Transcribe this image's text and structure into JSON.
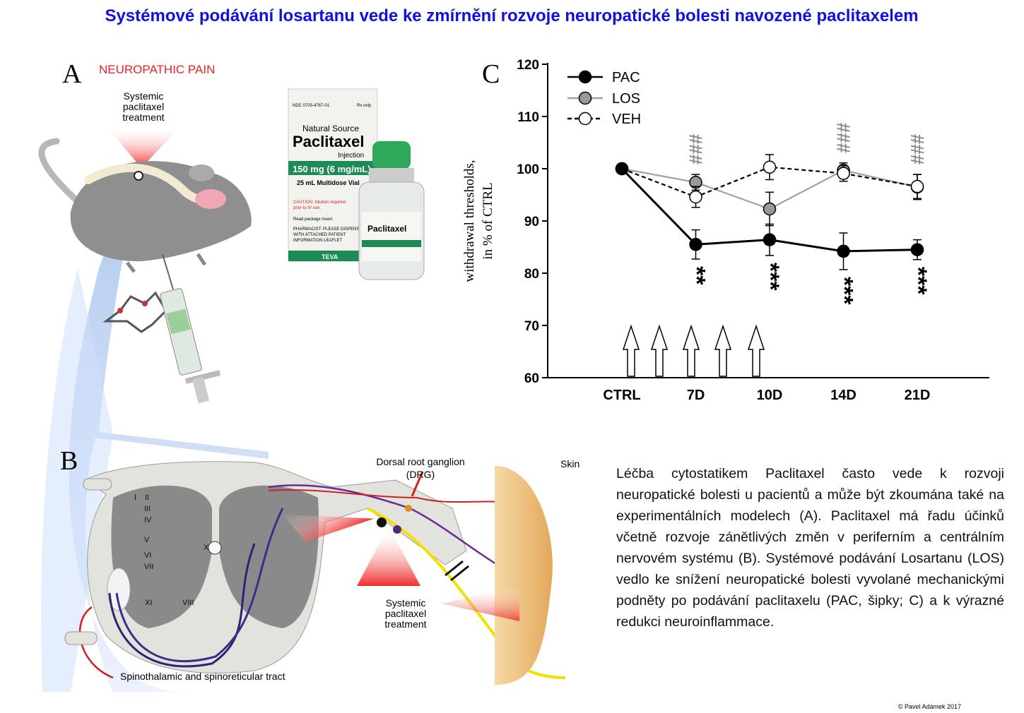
{
  "title": "Systémové podávání  losartanu vede ke zmírnění rozvoje neuropatické bolesti navozené paclitaxelem",
  "panel_a": {
    "letter": "A",
    "heading": "NEUROPATHIC PAIN",
    "treatment_label": [
      "Systemic",
      "paclitaxel",
      "treatment"
    ],
    "box": {
      "ndc": "NDC 0703-4767-01",
      "rx": "Rx only",
      "source": "Natural Source",
      "name": "Paclitaxel",
      "form": "Injection",
      "dose": "150 mg (6 mg/mL)",
      "volume": "25 mL Multidose Vial",
      "caution": [
        "CAUTION: Dilution required",
        "prior to IV use."
      ],
      "insert": "Read package insert.",
      "pharmacist": [
        "PHARMACIST: PLEASE DISPENSE",
        "WITH ATTACHED PATIENT",
        "INFORMATION LEAFLET"
      ],
      "brand": "TEVA"
    },
    "vial_label": "Paclitaxel"
  },
  "panel_b": {
    "letter": "B",
    "drg_label": [
      "Dorsal root ganglion",
      "(DRG)"
    ],
    "skin_label": "Skin",
    "treatment_label": [
      "Systemic",
      "paclitaxel",
      "treatment"
    ],
    "tract_label": "Spinothalamic and spinoreticular tract",
    "laminae": [
      "I",
      "II",
      "III",
      "IV",
      "V",
      "VI",
      "VII",
      "X",
      "XI",
      "VIII"
    ]
  },
  "chart_data": {
    "type": "line",
    "panel_letter": "C",
    "ylabel": [
      "withdrawal thresholds,",
      "in % of CTRL"
    ],
    "categories": [
      "CTRL",
      "7D",
      "10D",
      "14D",
      "21D"
    ],
    "ylim": [
      60,
      120
    ],
    "yticks": [
      60,
      70,
      80,
      90,
      100,
      110,
      120
    ],
    "series": [
      {
        "name": "PAC",
        "color": "#000000",
        "marker_fill": "#000000",
        "dashed": false,
        "values": [
          100,
          85.5,
          86.4,
          84.2,
          84.5
        ],
        "errors": [
          null,
          2.8,
          3.0,
          3.5,
          1.9
        ],
        "annotations": [
          null,
          "**",
          "***",
          "***",
          "***"
        ],
        "annotation_color": "#000000"
      },
      {
        "name": "LOS",
        "color": "#a0a0a0",
        "marker_fill": "#999999",
        "dashed": false,
        "values": [
          100,
          97.4,
          92.3,
          99.7,
          96.5
        ],
        "errors": [
          null,
          1.5,
          3.2,
          1.4,
          2.4
        ],
        "annotations": [
          null,
          "###",
          null,
          "###",
          "###"
        ],
        "annotation_color": "#8c8c8c"
      },
      {
        "name": "VEH",
        "color": "#000000",
        "marker_fill": "#ffffff",
        "dashed": true,
        "values": [
          100,
          94.6,
          100.3,
          99.1,
          96.6
        ],
        "errors": [
          null,
          2.0,
          2.4,
          1.5,
          2.3
        ],
        "annotations": [
          null,
          null,
          null,
          null,
          null
        ],
        "annotation_color": "#000000"
      }
    ]
  },
  "description": "Léčba cytostatikem Paclitaxel často vede k rozvoji neuropatické bolesti u pacientů a může být zkoumána také na experimentálních modelech (A).  Paclitaxel má řadu účinků včetně rozvoje zánětlivých změn v periferním a centrálním nervovém systému (B). Systémové podávání Losartanu (LOS) vedlo ke snížení neuropatické bolesti vyvolané mechanickými podněty po podávání paclitaxelu (PAC, šipky; C) a k výrazné redukci neuroinflammace.",
  "copyright": "© Pavel Adámek 2017"
}
